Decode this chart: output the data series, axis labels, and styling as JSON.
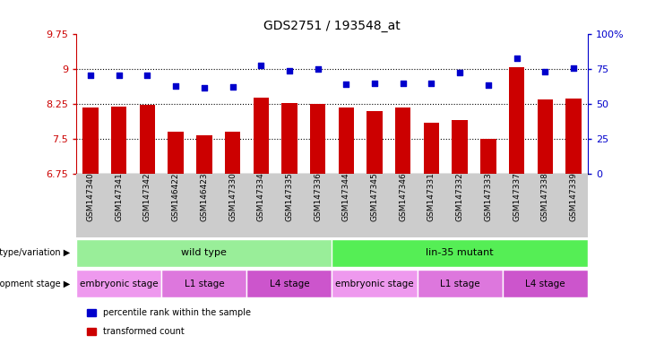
{
  "title": "GDS2751 / 193548_at",
  "samples": [
    "GSM147340",
    "GSM147341",
    "GSM147342",
    "GSM146422",
    "GSM146423",
    "GSM147330",
    "GSM147334",
    "GSM147335",
    "GSM147336",
    "GSM147344",
    "GSM147345",
    "GSM147346",
    "GSM147331",
    "GSM147332",
    "GSM147333",
    "GSM147337",
    "GSM147338",
    "GSM147339"
  ],
  "bar_values": [
    8.18,
    8.2,
    8.23,
    7.65,
    7.58,
    7.65,
    8.38,
    8.28,
    8.25,
    8.17,
    8.09,
    8.17,
    7.85,
    7.9,
    7.5,
    9.05,
    8.35,
    8.37
  ],
  "dot_values": [
    8.88,
    8.87,
    8.87,
    8.64,
    8.6,
    8.62,
    9.08,
    8.97,
    9.0,
    8.67,
    8.7,
    8.69,
    8.69,
    8.93,
    8.65,
    9.23,
    8.95,
    9.02
  ],
  "ylim_left": [
    6.75,
    9.75
  ],
  "ylim_right": [
    0,
    100
  ],
  "yticks_left": [
    6.75,
    7.5,
    8.25,
    9.0,
    9.75
  ],
  "yticks_right": [
    0,
    25,
    50,
    75,
    100
  ],
  "ytick_labels_left": [
    "6.75",
    "7.5",
    "8.25",
    "9",
    "9.75"
  ],
  "ytick_labels_right": [
    "0",
    "25",
    "50",
    "75",
    "100%"
  ],
  "hlines": [
    7.5,
    8.25,
    9.0
  ],
  "bar_color": "#cc0000",
  "dot_color": "#0000cc",
  "bar_bottom": 6.75,
  "genotype_groups": [
    {
      "text": "wild type",
      "start": 0,
      "end": 8,
      "color": "#99ee99"
    },
    {
      "text": "lin-35 mutant",
      "start": 9,
      "end": 17,
      "color": "#55ee55"
    }
  ],
  "genotype_label": "genotype/variation",
  "stage_groups": [
    {
      "text": "embryonic stage",
      "start": 0,
      "end": 2,
      "color": "#ee99ee"
    },
    {
      "text": "L1 stage",
      "start": 3,
      "end": 5,
      "color": "#dd77dd"
    },
    {
      "text": "L4 stage",
      "start": 6,
      "end": 8,
      "color": "#cc55cc"
    },
    {
      "text": "embryonic stage",
      "start": 9,
      "end": 11,
      "color": "#ee99ee"
    },
    {
      "text": "L1 stage",
      "start": 12,
      "end": 14,
      "color": "#dd77dd"
    },
    {
      "text": "L4 stage",
      "start": 15,
      "end": 17,
      "color": "#cc55cc"
    }
  ],
  "stage_label": "development stage",
  "legend_items": [
    {
      "label": "transformed count",
      "color": "#cc0000"
    },
    {
      "label": "percentile rank within the sample",
      "color": "#0000cc"
    }
  ],
  "tick_label_color_left": "#cc0000",
  "tick_label_color_right": "#0000cc",
  "sample_label_bg": "#cccccc",
  "bg_color": "#ffffff"
}
